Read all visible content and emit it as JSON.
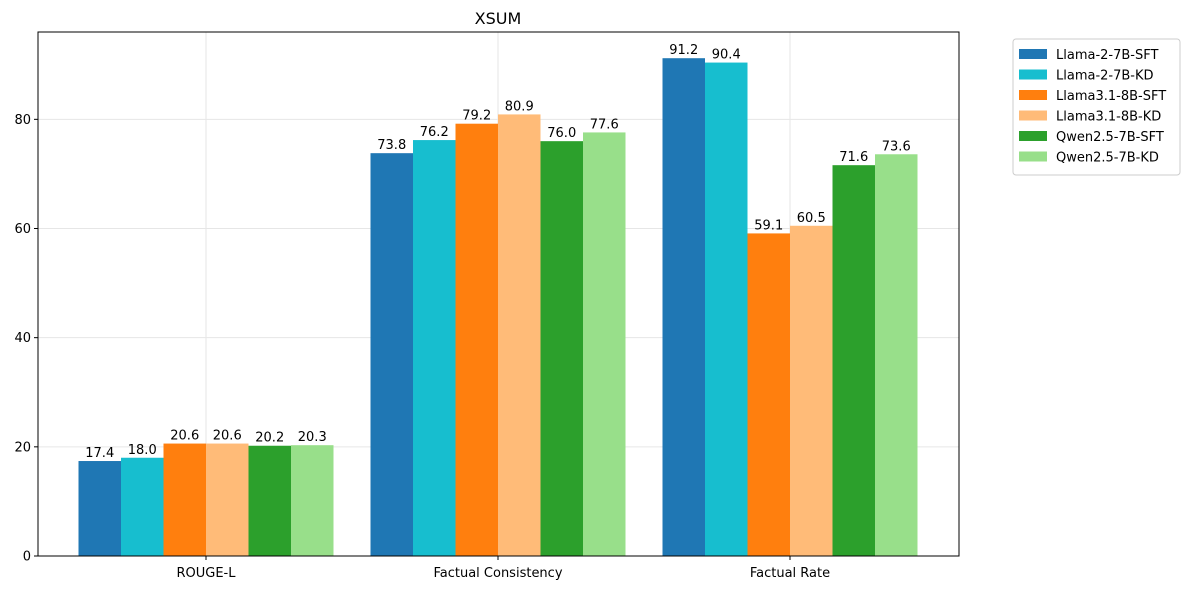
{
  "chart_data": {
    "type": "bar",
    "title": "XSUM",
    "xlabel": "",
    "ylabel": "",
    "categories": [
      "ROUGE-L",
      "Factual Consistency",
      "Factual Rate"
    ],
    "ylim": [
      0,
      96
    ],
    "yticks": [
      0,
      20,
      40,
      60,
      80
    ],
    "grid": true,
    "legend_position": "outside-top-right",
    "series": [
      {
        "name": "Llama-2-7B-SFT",
        "color": "#1f77b4",
        "values": [
          17.4,
          73.8,
          91.2
        ]
      },
      {
        "name": "Llama-2-7B-KD",
        "color": "#17becf",
        "values": [
          18.0,
          76.2,
          90.4
        ]
      },
      {
        "name": "Llama3.1-8B-SFT",
        "color": "#ff7f0e",
        "values": [
          20.6,
          79.2,
          59.1
        ]
      },
      {
        "name": "Llama3.1-8B-KD",
        "color": "#ffbb78",
        "values": [
          20.6,
          80.9,
          60.5
        ]
      },
      {
        "name": "Qwen2.5-7B-SFT",
        "color": "#2ca02c",
        "values": [
          20.2,
          76.0,
          71.6
        ]
      },
      {
        "name": "Qwen2.5-7B-KD",
        "color": "#98df8a",
        "values": [
          20.3,
          77.6,
          73.6
        ]
      }
    ]
  }
}
